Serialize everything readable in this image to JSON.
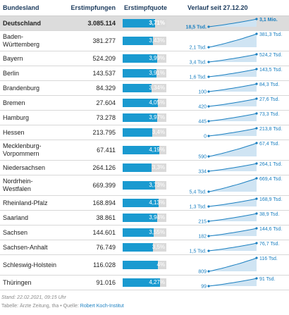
{
  "header": {
    "col1": "Bundesland",
    "col2": "Erstimpfungen",
    "col3": "Erstimpfquote",
    "col4": "Verlauf seit 27.12.20"
  },
  "chart_data": {
    "type": "table",
    "columns": [
      "Bundesland",
      "Erstimpfungen",
      "Erstimpfquote",
      "Verlauf seit 27.12.20"
    ],
    "rows": [
      {
        "name": "Deutschland",
        "value": "3.085.114",
        "quote": "3,71%",
        "quote_value": 3.71,
        "start_label": "18,5 Tsd.",
        "end_label": "3,1 Mio.",
        "total": true
      },
      {
        "name": "Baden-Württemberg",
        "value": "381.277",
        "quote": "3,43%",
        "quote_value": 3.43,
        "start_label": "2,1 Tsd.",
        "end_label": "381,3 Tsd."
      },
      {
        "name": "Bayern",
        "value": "524.209",
        "quote": "3,99%",
        "quote_value": 3.99,
        "start_label": "3,4 Tsd.",
        "end_label": "524,2 Tsd."
      },
      {
        "name": "Berlin",
        "value": "143.537",
        "quote": "3,91%",
        "quote_value": 3.91,
        "start_label": "1,6 Tsd.",
        "end_label": "143,5 Tsd."
      },
      {
        "name": "Brandenburg",
        "value": "84.329",
        "quote": "3,34%",
        "quote_value": 3.34,
        "start_label": "100",
        "end_label": "84,3 Tsd."
      },
      {
        "name": "Bremen",
        "value": "27.604",
        "quote": "4,05%",
        "quote_value": 4.05,
        "start_label": "420",
        "end_label": "27,6 Tsd."
      },
      {
        "name": "Hamburg",
        "value": "73.278",
        "quote": "3,97%",
        "quote_value": 3.97,
        "start_label": "445",
        "end_label": "73,3 Tsd."
      },
      {
        "name": "Hessen",
        "value": "213.795",
        "quote": "3,4%",
        "quote_value": 3.4,
        "start_label": "0",
        "end_label": "213,8 Tsd."
      },
      {
        "name": "Mecklenburg-Vorpommern",
        "value": "67.411",
        "quote": "4,19%",
        "quote_value": 4.19,
        "start_label": "590",
        "end_label": "67,4 Tsd."
      },
      {
        "name": "Niedersachsen",
        "value": "264.126",
        "quote": "3,3%",
        "quote_value": 3.3,
        "start_label": "334",
        "end_label": "264,1 Tsd."
      },
      {
        "name": "Nordrhein-Westfalen",
        "value": "669.399",
        "quote": "3,73%",
        "quote_value": 3.73,
        "start_label": "5,4 Tsd.",
        "end_label": "669,4 Tsd."
      },
      {
        "name": "Rheinland-Pfalz",
        "value": "168.894",
        "quote": "4,13%",
        "quote_value": 4.13,
        "start_label": "1,3 Tsd.",
        "end_label": "168,9 Tsd."
      },
      {
        "name": "Saarland",
        "value": "38.861",
        "quote": "3,94%",
        "quote_value": 3.94,
        "start_label": "215",
        "end_label": "38,9 Tsd."
      },
      {
        "name": "Sachsen",
        "value": "144.601",
        "quote": "3,55%",
        "quote_value": 3.55,
        "start_label": "182",
        "end_label": "144,6 Tsd."
      },
      {
        "name": "Sachsen-Anhalt",
        "value": "76.749",
        "quote": "3,5%",
        "quote_value": 3.5,
        "start_label": "1,5 Tsd.",
        "end_label": "76,7 Tsd."
      },
      {
        "name": "Schleswig-Holstein",
        "value": "116.028",
        "quote": "4%",
        "quote_value": 4.0,
        "start_label": "809",
        "end_label": "116 Tsd."
      },
      {
        "name": "Thüringen",
        "value": "91.016",
        "quote": "4,27%",
        "quote_value": 4.27,
        "start_label": "99",
        "end_label": "91 Tsd."
      }
    ],
    "quote_bar_max": 5,
    "spark_shape": [
      0,
      0.05,
      0.11,
      0.17,
      0.23,
      0.3,
      0.37,
      0.44,
      0.51,
      0.58,
      0.66,
      0.74,
      0.82,
      0.9,
      1.0
    ]
  },
  "footer": {
    "stand": "Stand: 22.02.2021, 09:15 Uhr",
    "source_prefix": "Tabelle: Ärzte Zeitung, tha • Quelle: ",
    "source_link": "Robert Koch-Institut"
  },
  "colors": {
    "bar": "#1a9ad0",
    "bar_bg": "#d9d9d9",
    "spark_line": "#1a7fc0",
    "spark_fill": "#cfe4f3"
  }
}
